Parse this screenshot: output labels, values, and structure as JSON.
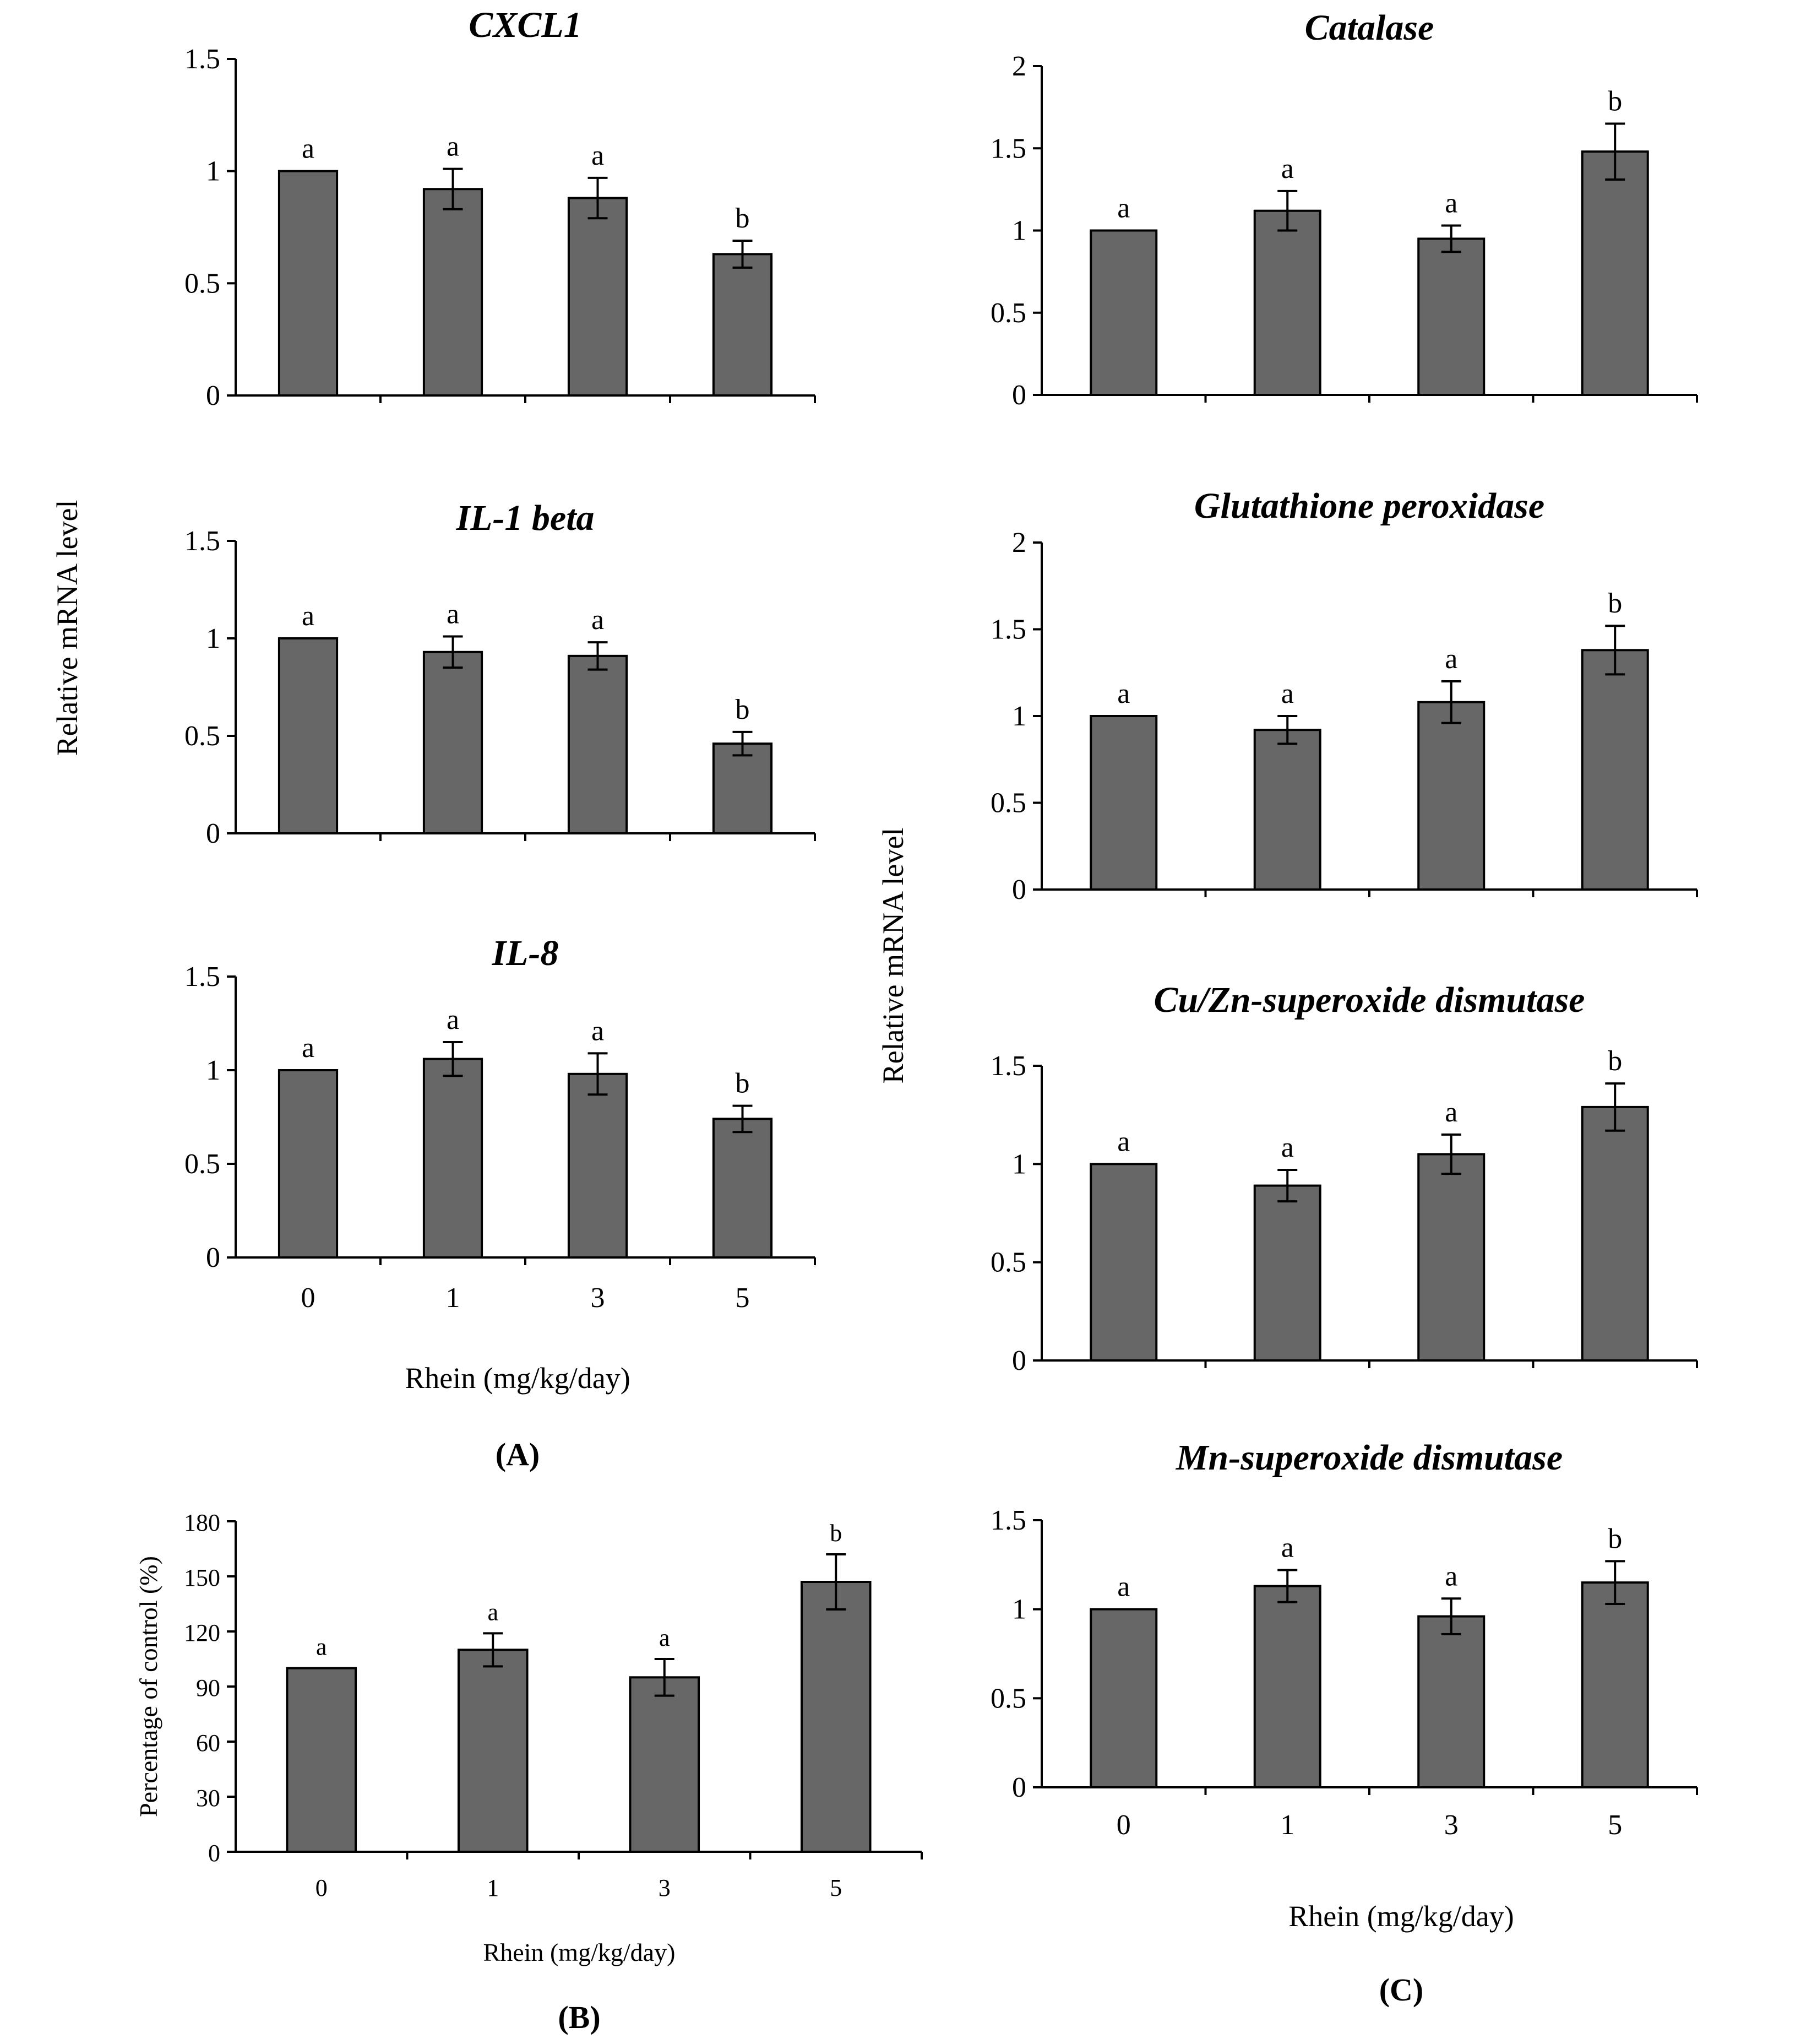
{
  "figure": {
    "panel_labels": [
      "(A)",
      "(B)",
      "(C)"
    ],
    "y_label_left": "Relative mRNA level",
    "y_label_right": "Relative mRNA level",
    "x_label_A": "Rhein (mg/kg/day)",
    "x_label_B": "Rhein (mg/kg/day)",
    "x_label_C": "Rhein (mg/kg/day)"
  },
  "chart_data": [
    {
      "id": "cxcl1",
      "panel": "A",
      "type": "bar",
      "title": "CXCL1",
      "categories": [
        "0",
        "1",
        "3",
        "5"
      ],
      "values": [
        1.0,
        0.92,
        0.88,
        0.63
      ],
      "errors": [
        0.0,
        0.09,
        0.09,
        0.06
      ],
      "significance": [
        "a",
        "a",
        "a",
        "b"
      ],
      "ylim": [
        0,
        1.5
      ],
      "yticks": [
        0,
        0.5,
        1,
        1.5
      ],
      "ytick_labels": [
        "0",
        "0.5",
        "1",
        "1.5"
      ],
      "show_xticks": false,
      "bar_color": "#676767"
    },
    {
      "id": "il1beta",
      "panel": "A",
      "type": "bar",
      "title": "IL-1 beta",
      "categories": [
        "0",
        "1",
        "3",
        "5"
      ],
      "values": [
        1.0,
        0.93,
        0.91,
        0.46
      ],
      "errors": [
        0.0,
        0.08,
        0.07,
        0.06
      ],
      "significance": [
        "a",
        "a",
        "a",
        "b"
      ],
      "ylim": [
        0,
        1.5
      ],
      "yticks": [
        0,
        0.5,
        1,
        1.5
      ],
      "ytick_labels": [
        "0",
        "0.5",
        "1",
        "1.5"
      ],
      "show_xticks": false,
      "bar_color": "#676767"
    },
    {
      "id": "il8",
      "panel": "A",
      "type": "bar",
      "title": "IL-8",
      "categories": [
        "0",
        "1",
        "3",
        "5"
      ],
      "values": [
        1.0,
        1.06,
        0.98,
        0.74
      ],
      "errors": [
        0.0,
        0.09,
        0.11,
        0.07
      ],
      "significance": [
        "a",
        "a",
        "a",
        "b"
      ],
      "ylim": [
        0,
        1.5
      ],
      "yticks": [
        0,
        0.5,
        1,
        1.5
      ],
      "ytick_labels": [
        "0",
        "0.5",
        "1",
        "1.5"
      ],
      "show_xticks": true,
      "bar_color": "#676767"
    },
    {
      "id": "pct",
      "panel": "B",
      "type": "bar",
      "title": "",
      "ylabel": "Percentage of control (%)",
      "categories": [
        "0",
        "1",
        "3",
        "5"
      ],
      "values": [
        100,
        110,
        95,
        147
      ],
      "errors": [
        0,
        9,
        10,
        15
      ],
      "significance": [
        "a",
        "a",
        "a",
        "b"
      ],
      "ylim": [
        0,
        180
      ],
      "yticks": [
        0,
        30,
        60,
        90,
        120,
        150,
        180
      ],
      "ytick_labels": [
        "0",
        "30",
        "60",
        "90",
        "120",
        "150",
        "180"
      ],
      "show_xticks": true,
      "bar_color": "#676767"
    },
    {
      "id": "catalase",
      "panel": "C",
      "type": "bar",
      "title": "Catalase",
      "categories": [
        "0",
        "1",
        "3",
        "5"
      ],
      "values": [
        1.0,
        1.12,
        0.95,
        1.48
      ],
      "errors": [
        0.0,
        0.12,
        0.08,
        0.17
      ],
      "significance": [
        "a",
        "a",
        "a",
        "b"
      ],
      "ylim": [
        0,
        2
      ],
      "yticks": [
        0,
        0.5,
        1,
        1.5,
        2
      ],
      "ytick_labels": [
        "0",
        "0.5",
        "1",
        "1.5",
        "2"
      ],
      "show_xticks": false,
      "bar_color": "#676767"
    },
    {
      "id": "gpx",
      "panel": "C",
      "type": "bar",
      "title": "Glutathione peroxidase",
      "categories": [
        "0",
        "1",
        "3",
        "5"
      ],
      "values": [
        1.0,
        0.92,
        1.08,
        1.38
      ],
      "errors": [
        0.0,
        0.08,
        0.12,
        0.14
      ],
      "significance": [
        "a",
        "a",
        "a",
        "b"
      ],
      "ylim": [
        0,
        2
      ],
      "yticks": [
        0,
        0.5,
        1,
        1.5,
        2
      ],
      "ytick_labels": [
        "0",
        "0.5",
        "1",
        "1.5",
        "2"
      ],
      "show_xticks": false,
      "bar_color": "#676767"
    },
    {
      "id": "cuznsod",
      "panel": "C",
      "type": "bar",
      "title": "Cu/Zn-superoxide dismutase",
      "categories": [
        "0",
        "1",
        "3",
        "5"
      ],
      "values": [
        1.0,
        0.89,
        1.05,
        1.29
      ],
      "errors": [
        0.0,
        0.08,
        0.1,
        0.12
      ],
      "significance": [
        "a",
        "a",
        "a",
        "b"
      ],
      "ylim": [
        0,
        1.5
      ],
      "yticks": [
        0,
        0.5,
        1,
        1.5
      ],
      "ytick_labels": [
        "0",
        "0.5",
        "1",
        "1.5"
      ],
      "show_xticks": false,
      "bar_color": "#676767"
    },
    {
      "id": "mnsod",
      "panel": "C",
      "type": "bar",
      "title": "Mn-superoxide dismutase",
      "categories": [
        "0",
        "1",
        "3",
        "5"
      ],
      "values": [
        1.0,
        1.13,
        0.96,
        1.15
      ],
      "errors": [
        0.0,
        0.09,
        0.1,
        0.12
      ],
      "significance": [
        "a",
        "a",
        "a",
        "b"
      ],
      "ylim": [
        0,
        1.5
      ],
      "yticks": [
        0,
        0.5,
        1,
        1.5
      ],
      "ytick_labels": [
        "0",
        "0.5",
        "1",
        "1.5"
      ],
      "show_xticks": true,
      "bar_color": "#676767"
    }
  ]
}
